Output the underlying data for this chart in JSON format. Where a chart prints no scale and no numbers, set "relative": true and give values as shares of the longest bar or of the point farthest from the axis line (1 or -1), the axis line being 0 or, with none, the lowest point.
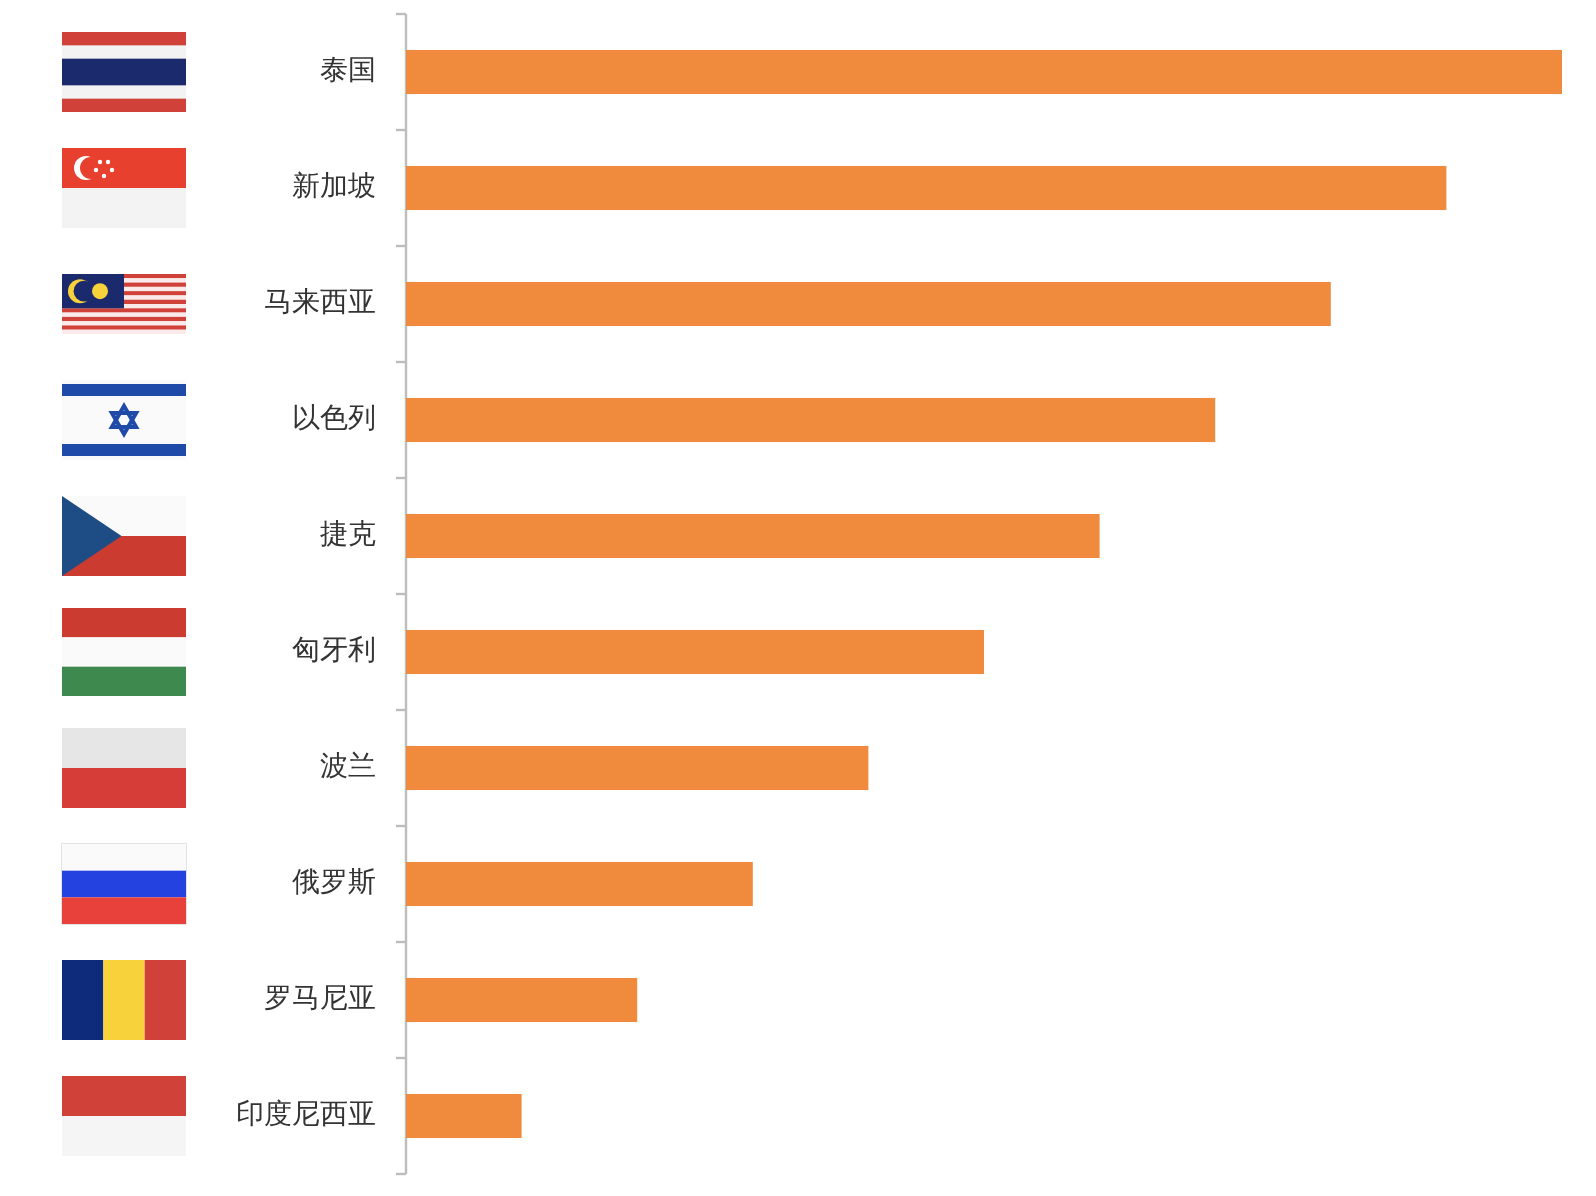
{
  "chart_data": {
    "type": "bar",
    "orientation": "horizontal",
    "relative": true,
    "categories": [
      "泰国",
      "新加坡",
      "马来西亚",
      "以色列",
      "捷克",
      "匈牙利",
      "波兰",
      "俄罗斯",
      "罗马尼亚",
      "印度尼西亚"
    ],
    "values": [
      1,
      0.9,
      0.8,
      0.7,
      0.6,
      0.5,
      0.4,
      0.3,
      0.2,
      0.1
    ],
    "color": "#f08a3c"
  }
}
